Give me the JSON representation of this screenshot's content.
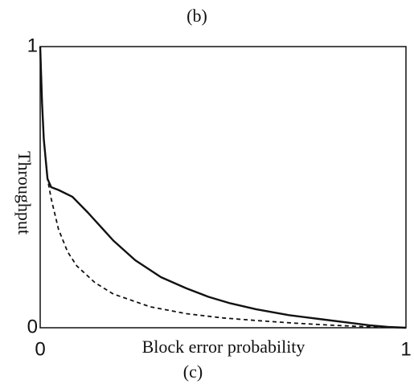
{
  "chart_data": {
    "type": "line",
    "title": "(b)",
    "caption": "(c)",
    "x_label": "Block error probability",
    "y_label": "Throughput",
    "xlim": [
      0,
      1
    ],
    "ylim": [
      0,
      1
    ],
    "xticks": [
      0,
      1
    ],
    "yticks": [
      0,
      1
    ],
    "grid": false,
    "series": [
      {
        "color": "#111111",
        "dashed": false,
        "x": [
          0,
          0.005,
          0.01,
          0.02,
          0.03,
          0.05,
          0.088,
          0.13,
          0.2,
          0.26,
          0.33,
          0.4,
          0.46,
          0.52,
          0.59,
          0.68,
          0.77,
          0.85,
          0.9,
          0.95,
          1
        ],
        "values": [
          1,
          0.8,
          0.67,
          0.53,
          0.5,
          0.49,
          0.466,
          0.41,
          0.31,
          0.24,
          0.18,
          0.14,
          0.11,
          0.087,
          0.066,
          0.045,
          0.03,
          0.017,
          0.009,
          0.003,
          0
        ]
      },
      {
        "color": "#111111",
        "dashed": true,
        "x": [
          0,
          0.005,
          0.01,
          0.02,
          0.03,
          0.05,
          0.075,
          0.1,
          0.15,
          0.2,
          0.3,
          0.4,
          0.5,
          0.6,
          0.7,
          0.8,
          0.9,
          1
        ],
        "values": [
          1,
          0.8,
          0.67,
          0.53,
          0.46,
          0.35,
          0.27,
          0.22,
          0.16,
          0.12,
          0.075,
          0.05,
          0.035,
          0.025,
          0.016,
          0.009,
          0.003,
          0
        ]
      }
    ]
  }
}
